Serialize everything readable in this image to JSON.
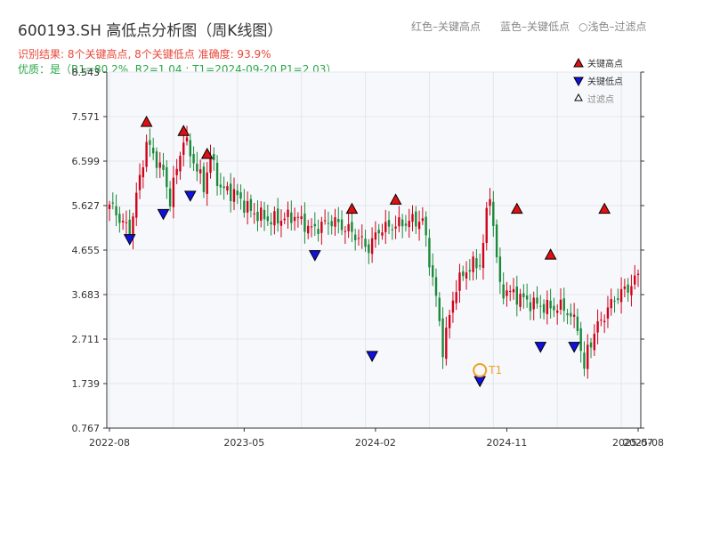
{
  "header": {
    "title": "600193.SH 高低点分析图（周K线图）",
    "hint_red": "红色–关键高点",
    "hint_blue": "蓝色–关键低点",
    "hint_light": "○浅色–过滤点",
    "result": "识别结果: 8个关键高点, 8个关键低点  准确度: 93.9%",
    "quality": "优质：是（R1=80.2%, R2=1.04 ; T1=2024-09-20 P1=2.03）"
  },
  "legend": {
    "high": "关键高点",
    "low": "关键低点",
    "filtered": "过滤点"
  },
  "colors": {
    "up": "#d0021b",
    "down": "#1a8a3a",
    "high_marker": "#e01010",
    "low_marker": "#1010e0",
    "t1": "#f0a020"
  },
  "chart_data": {
    "type": "candlestick",
    "y_ticks": [
      "0.767",
      "1.739",
      "2.711",
      "3.683",
      "4.655",
      "5.627",
      "6.599",
      "7.571",
      "8.543"
    ],
    "ylim": [
      0.767,
      8.543
    ],
    "x_ticks": [
      "2022-08",
      "2023-05",
      "2024-02",
      "2024-11",
      "2025-07",
      "2025-08"
    ],
    "weeks": 158,
    "points": [
      [
        0,
        5.65
      ],
      [
        6,
        5.05
      ],
      [
        11,
        7.0
      ],
      [
        16,
        6.35
      ],
      [
        18,
        5.75
      ],
      [
        22,
        7.1
      ],
      [
        25,
        6.6
      ],
      [
        28,
        6.05
      ],
      [
        30,
        6.7
      ],
      [
        33,
        6.0
      ],
      [
        37,
        5.9
      ],
      [
        42,
        5.5
      ],
      [
        48,
        5.3
      ],
      [
        55,
        5.4
      ],
      [
        60,
        5.1
      ],
      [
        66,
        5.3
      ],
      [
        72,
        5.05
      ],
      [
        77,
        4.7
      ],
      [
        80,
        5.1
      ],
      [
        85,
        5.2
      ],
      [
        90,
        5.3
      ],
      [
        93,
        5.3
      ],
      [
        97,
        3.6
      ],
      [
        99,
        2.5
      ],
      [
        103,
        3.9
      ],
      [
        107,
        4.3
      ],
      [
        110,
        4.35
      ],
      [
        113,
        5.9
      ],
      [
        116,
        3.8
      ],
      [
        120,
        3.7
      ],
      [
        125,
        3.5
      ],
      [
        130,
        3.4
      ],
      [
        135,
        3.4
      ],
      [
        139,
        3.0
      ],
      [
        141,
        2.0
      ],
      [
        142,
        2.5
      ],
      [
        145,
        3.0
      ],
      [
        150,
        3.6
      ],
      [
        155,
        3.9
      ],
      [
        157,
        4.1
      ]
    ],
    "key_highs": [
      {
        "week": 11,
        "value": 7.3
      },
      {
        "week": 22,
        "value": 7.1
      },
      {
        "week": 29,
        "value": 6.6
      },
      {
        "week": 72,
        "value": 5.4
      },
      {
        "week": 85,
        "value": 5.6
      },
      {
        "week": 121,
        "value": 5.4
      },
      {
        "week": 131,
        "value": 4.4
      },
      {
        "week": 147,
        "value": 5.4
      }
    ],
    "key_lows": [
      {
        "week": 6,
        "value": 5.05
      },
      {
        "week": 16,
        "value": 5.6
      },
      {
        "week": 24,
        "value": 6.0
      },
      {
        "week": 61,
        "value": 4.7
      },
      {
        "week": 78,
        "value": 2.5
      },
      {
        "week": 110,
        "value": 1.95
      },
      {
        "week": 128,
        "value": 2.7
      },
      {
        "week": 138,
        "value": 2.7
      }
    ],
    "t1": {
      "label": "T1",
      "week": 110,
      "value": 2.03
    }
  }
}
